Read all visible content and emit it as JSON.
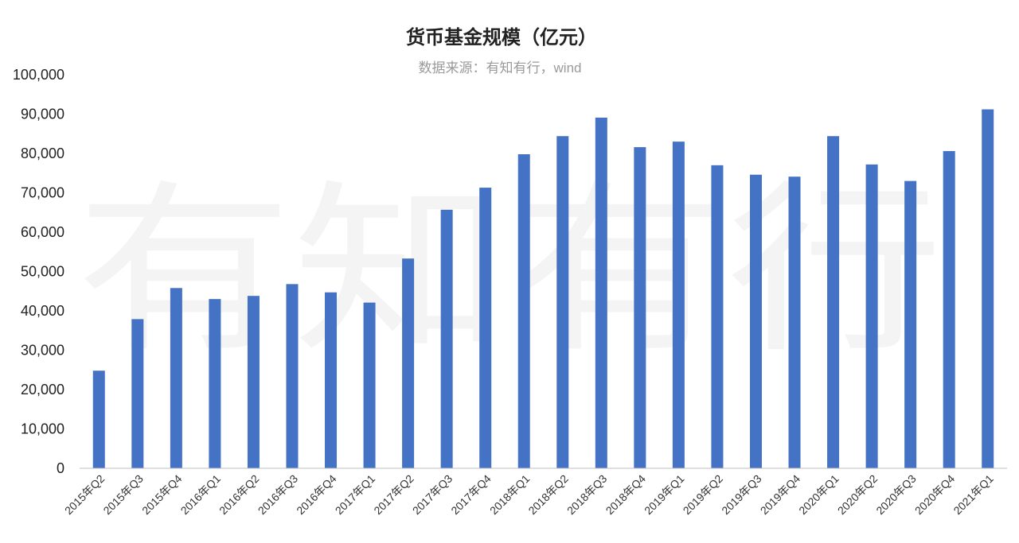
{
  "colors": {
    "bar": "#4472C4",
    "axis": "#bfbfbf",
    "background": "#ffffff"
  },
  "watermark": "有知有行",
  "chart_data": {
    "type": "bar",
    "title": "货币基金规模（亿元）",
    "subtitle": "数据来源：有知有行，wind",
    "xlabel": "",
    "ylabel": "",
    "ylim": [
      0,
      100000
    ],
    "yticks": [
      "0",
      "10,000",
      "20,000",
      "30,000",
      "40,000",
      "50,000",
      "60,000",
      "70,000",
      "80,000",
      "90,000",
      "100,000"
    ],
    "grid": false,
    "legend": "none",
    "categories": [
      "2015年Q2",
      "2015年Q3",
      "2015年Q4",
      "2016年Q1",
      "2016年Q2",
      "2016年Q3",
      "2016年Q4",
      "2017年Q1",
      "2017年Q2",
      "2017年Q3",
      "2017年Q4",
      "2018年Q1",
      "2018年Q2",
      "2018年Q3",
      "2018年Q4",
      "2019年Q1",
      "2019年Q2",
      "2019年Q3",
      "2019年Q4",
      "2020年Q1",
      "2020年Q2",
      "2020年Q3",
      "2020年Q4",
      "2021年Q1"
    ],
    "values": [
      24800,
      37900,
      45800,
      43000,
      43800,
      46800,
      44700,
      42100,
      53300,
      65700,
      71300,
      79800,
      84400,
      89100,
      81600,
      83000,
      77000,
      74600,
      74100,
      84400,
      77200,
      73000,
      80600,
      91200
    ]
  }
}
